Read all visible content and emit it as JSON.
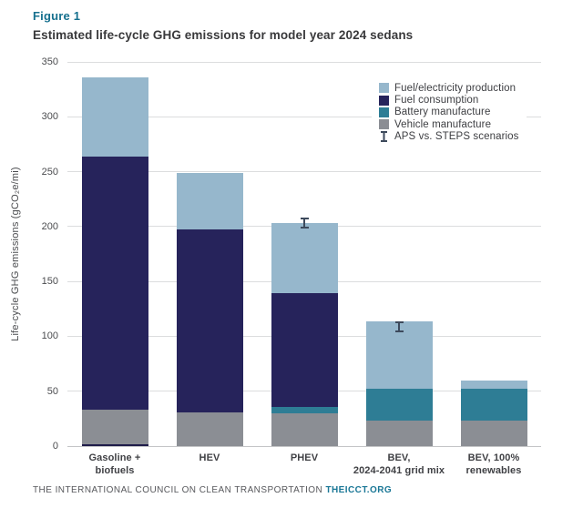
{
  "header": {
    "figure_label": "Figure 1",
    "title": "Estimated life-cycle GHG emissions for model year 2024 sedans"
  },
  "footer": {
    "text": "THE INTERNATIONAL COUNCIL ON CLEAN TRANSPORTATION ",
    "link": "THEICCT.ORG"
  },
  "colors": {
    "accent_teal": "#16708e",
    "fuel_electricity_production": "#96b7cc",
    "fuel_consumption": "#26235b",
    "battery_manufacture": "#2e7d95",
    "vehicle_manufacture": "#8b8e94",
    "error_bar": "#3d4a5c",
    "gridline": "#dcddde"
  },
  "chart_data": {
    "type": "bar",
    "stacked": true,
    "title": "Estimated life-cycle GHG emissions for model year 2024 sedans",
    "xlabel": "",
    "ylabel": "Life-cycle GHG emissions (gCO₂e/mi)",
    "ylim": [
      0,
      350
    ],
    "ytick_step": 50,
    "grid": true,
    "legend_position": "top-right",
    "categories": [
      "Gasoline +\nbiofuels",
      "HEV",
      "PHEV",
      "BEV,\n2024-2041 grid mix",
      "BEV, 100%\nrenewables"
    ],
    "series": [
      {
        "name": "Vehicle manufacture",
        "color": "#8b8e94",
        "values": [
          33,
          31,
          30,
          23,
          23
        ]
      },
      {
        "name": "Battery manufacture",
        "color": "#2e7d95",
        "values": [
          0,
          0,
          6,
          29,
          29
        ]
      },
      {
        "name": "Fuel consumption",
        "color": "#26235b",
        "values": [
          231,
          166,
          103,
          0,
          0
        ]
      },
      {
        "name": "Fuel/electricity production",
        "color": "#96b7cc",
        "values": [
          72,
          52,
          64,
          62,
          8
        ]
      }
    ],
    "totals": [
      336,
      249,
      203,
      114,
      60
    ],
    "error_bars": [
      {
        "category_index": 2,
        "low": 198,
        "high": 208,
        "label": "APS vs. STEPS scenarios"
      },
      {
        "category_index": 3,
        "low": 104,
        "high": 114,
        "label": "APS vs. STEPS scenarios"
      }
    ],
    "baseline_accent": {
      "category_index": 0,
      "color": "#1f1c4a"
    },
    "legend": [
      {
        "label": "Fuel/electricity production",
        "swatch": "#96b7cc",
        "type": "square"
      },
      {
        "label": "Fuel consumption",
        "swatch": "#26235b",
        "type": "square"
      },
      {
        "label": "Battery manufacture",
        "swatch": "#2e7d95",
        "type": "square"
      },
      {
        "label": "Vehicle manufacture",
        "swatch": "#8b8e94",
        "type": "square"
      },
      {
        "label": "APS vs. STEPS scenarios",
        "type": "error-bar-icon"
      }
    ]
  }
}
